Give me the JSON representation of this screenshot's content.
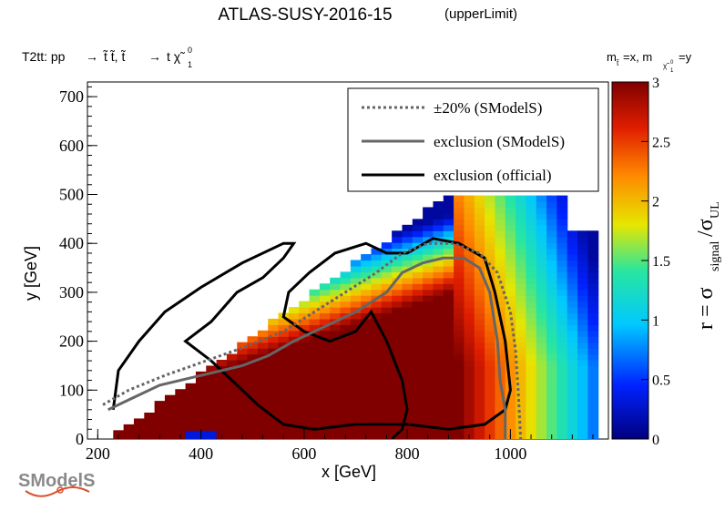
{
  "header": {
    "title": "ATLAS-SUSY-2016-15",
    "subtitle": "(upperLimit)",
    "process_prefix": "T2tt: pp",
    "process_arrow1": "→",
    "process_mid": "t̃ t̃, t̃",
    "process_arrow2": "→",
    "process_end": "t χ̃",
    "process_sup": "0",
    "process_sub": "1",
    "mass_label": "m",
    "mass_sub_stop": "t̃",
    "mass_eq_x": "=x, m",
    "mass_sub_chi": "χ̃",
    "mass_sub_chi_sup": "0",
    "mass_sub_chi_sub": "1",
    "mass_eq_y": "=y"
  },
  "logo": {
    "text": "SModelS"
  },
  "colors": {
    "sms_line": "#666666",
    "official_line": "#000000",
    "colormap": [
      "#00007f",
      "#0022ff",
      "#00c8ff",
      "#28e6a0",
      "#e6e600",
      "#ff8800",
      "#e01e00",
      "#800000"
    ]
  },
  "chart_data": {
    "type": "heatmap",
    "x_label": "x [GeV]",
    "y_label": "y [GeV]",
    "x_ticks": [
      200,
      400,
      600,
      800,
      1000
    ],
    "y_ticks": [
      0,
      100,
      200,
      300,
      400,
      500,
      600,
      700
    ],
    "xlim": [
      180,
      1190
    ],
    "ylim": [
      0,
      730
    ],
    "grid": false,
    "colorbar": {
      "label_main": "r = σ",
      "label_sub1": "signal",
      "label_mid": "/σ",
      "label_sub2": "UL",
      "range": [
        0,
        3
      ],
      "ticks": [
        "0",
        "0.5",
        "1",
        "1.5",
        "2",
        "2.5",
        "3"
      ]
    },
    "legend": {
      "position": "top-right",
      "entries": [
        {
          "label": "±20% (SModelS)",
          "style": "dotted",
          "color": "#666666"
        },
        {
          "label": "exclusion (SModelS)",
          "style": "solid",
          "color": "#666666"
        },
        {
          "label": "exclusion (official)",
          "style": "solid",
          "color": "#000000"
        }
      ]
    },
    "series": [
      {
        "name": "exclusion (official)",
        "points": [
          [
            230,
            60
          ],
          [
            240,
            140
          ],
          [
            280,
            200
          ],
          [
            330,
            260
          ],
          [
            400,
            310
          ],
          [
            480,
            360
          ],
          [
            560,
            400
          ],
          [
            580,
            400
          ],
          [
            560,
            370
          ],
          [
            520,
            330
          ],
          [
            470,
            300
          ],
          [
            420,
            240
          ],
          [
            370,
            200
          ],
          [
            420,
            160
          ],
          [
            470,
            110
          ],
          [
            510,
            70
          ],
          [
            560,
            30
          ],
          [
            620,
            20
          ],
          [
            700,
            30
          ],
          [
            760,
            30
          ],
          [
            800,
            30
          ],
          [
            880,
            20
          ],
          [
            950,
            30
          ],
          [
            990,
            60
          ],
          [
            1000,
            100
          ],
          [
            990,
            200
          ],
          [
            970,
            300
          ],
          [
            950,
            370
          ],
          [
            900,
            400
          ],
          [
            850,
            410
          ],
          [
            800,
            380
          ],
          [
            760,
            380
          ],
          [
            720,
            400
          ],
          [
            660,
            380
          ],
          [
            610,
            340
          ],
          [
            570,
            300
          ],
          [
            560,
            250
          ],
          [
            600,
            220
          ],
          [
            650,
            200
          ],
          [
            700,
            220
          ],
          [
            730,
            260
          ],
          [
            760,
            200
          ],
          [
            790,
            120
          ],
          [
            800,
            60
          ],
          [
            790,
            20
          ],
          [
            770,
            0
          ]
        ]
      },
      {
        "name": "exclusion (SModelS)",
        "points": [
          [
            220,
            60
          ],
          [
            260,
            80
          ],
          [
            320,
            110
          ],
          [
            400,
            130
          ],
          [
            480,
            150
          ],
          [
            530,
            170
          ],
          [
            580,
            200
          ],
          [
            640,
            230
          ],
          [
            700,
            260
          ],
          [
            760,
            300
          ],
          [
            790,
            340
          ],
          [
            830,
            360
          ],
          [
            870,
            370
          ],
          [
            910,
            370
          ],
          [
            940,
            350
          ],
          [
            960,
            300
          ],
          [
            975,
            200
          ],
          [
            980,
            120
          ],
          [
            990,
            60
          ],
          [
            990,
            0
          ]
        ]
      },
      {
        "name": "±20% (SModelS)",
        "points": [
          [
            210,
            70
          ],
          [
            260,
            100
          ],
          [
            330,
            130
          ],
          [
            410,
            160
          ],
          [
            490,
            190
          ],
          [
            560,
            220
          ],
          [
            620,
            260
          ],
          [
            680,
            300
          ],
          [
            740,
            340
          ],
          [
            790,
            380
          ],
          [
            840,
            400
          ],
          [
            890,
            400
          ],
          [
            940,
            380
          ],
          [
            975,
            340
          ],
          [
            1000,
            260
          ],
          [
            1010,
            180
          ],
          [
            1015,
            100
          ],
          [
            1020,
            0
          ]
        ]
      }
    ]
  }
}
